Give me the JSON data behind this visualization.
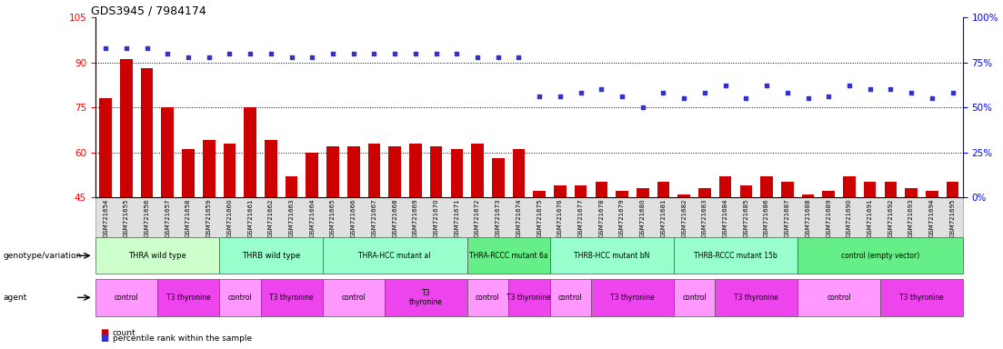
{
  "title": "GDS3945 / 7984174",
  "samples": [
    "GSM721654",
    "GSM721655",
    "GSM721656",
    "GSM721657",
    "GSM721658",
    "GSM721659",
    "GSM721660",
    "GSM721661",
    "GSM721662",
    "GSM721663",
    "GSM721664",
    "GSM721665",
    "GSM721666",
    "GSM721667",
    "GSM721668",
    "GSM721669",
    "GSM721670",
    "GSM721671",
    "GSM721672",
    "GSM721673",
    "GSM721674",
    "GSM721675",
    "GSM721676",
    "GSM721677",
    "GSM721678",
    "GSM721679",
    "GSM721680",
    "GSM721681",
    "GSM721682",
    "GSM721683",
    "GSM721684",
    "GSM721685",
    "GSM721686",
    "GSM721687",
    "GSM721688",
    "GSM721689",
    "GSM721690",
    "GSM721691",
    "GSM721692",
    "GSM721693",
    "GSM721694",
    "GSM721695"
  ],
  "bar_values": [
    78,
    91,
    88,
    75,
    61,
    64,
    63,
    75,
    64,
    52,
    60,
    62,
    62,
    63,
    62,
    63,
    62,
    61,
    63,
    58,
    61,
    47,
    49,
    49,
    50,
    47,
    48,
    50,
    46,
    48,
    52,
    49,
    52,
    50,
    46,
    47,
    52,
    50,
    50,
    48,
    47,
    50
  ],
  "dot_pct": [
    83,
    83,
    83,
    80,
    78,
    78,
    80,
    80,
    80,
    78,
    78,
    80,
    80,
    80,
    80,
    80,
    80,
    80,
    78,
    78,
    78,
    56,
    56,
    58,
    60,
    56,
    50,
    58,
    55,
    58,
    62,
    55,
    62,
    58,
    55,
    56,
    62,
    60,
    60,
    58,
    55,
    58
  ],
  "left_ylim": [
    45,
    105
  ],
  "right_ylim": [
    0,
    100
  ],
  "left_yticks": [
    45,
    60,
    75,
    90,
    105
  ],
  "right_yticks": [
    0,
    25,
    50,
    75,
    100
  ],
  "right_yticklabels": [
    "0%",
    "25%",
    "50%",
    "75%",
    "100%"
  ],
  "hlines": [
    60,
    75,
    90
  ],
  "bar_color": "#cc0000",
  "dot_color": "#3333cc",
  "genotype_groups": [
    {
      "label": "THRA wild type",
      "start": 0,
      "end": 6,
      "color": "#ccffcc"
    },
    {
      "label": "THRB wild type",
      "start": 6,
      "end": 11,
      "color": "#99ffcc"
    },
    {
      "label": "THRA-HCC mutant al",
      "start": 11,
      "end": 18,
      "color": "#99ffcc"
    },
    {
      "label": "THRA-RCCC mutant 6a",
      "start": 18,
      "end": 22,
      "color": "#66ee88"
    },
    {
      "label": "THRB-HCC mutant bN",
      "start": 22,
      "end": 28,
      "color": "#99ffcc"
    },
    {
      "label": "THRB-RCCC mutant 15b",
      "start": 28,
      "end": 34,
      "color": "#99ffcc"
    },
    {
      "label": "control (empty vector)",
      "start": 34,
      "end": 42,
      "color": "#66ee88"
    }
  ],
  "agent_groups": [
    {
      "label": "control",
      "start": 0,
      "end": 3,
      "color": "#ff99ff"
    },
    {
      "label": "T3 thyronine",
      "start": 3,
      "end": 6,
      "color": "#ee44ee"
    },
    {
      "label": "control",
      "start": 6,
      "end": 8,
      "color": "#ff99ff"
    },
    {
      "label": "T3 thyronine",
      "start": 8,
      "end": 11,
      "color": "#ee44ee"
    },
    {
      "label": "control",
      "start": 11,
      "end": 14,
      "color": "#ff99ff"
    },
    {
      "label": "T3\nthyronine",
      "start": 14,
      "end": 18,
      "color": "#ee44ee"
    },
    {
      "label": "control",
      "start": 18,
      "end": 20,
      "color": "#ff99ff"
    },
    {
      "label": "T3 thyronine",
      "start": 20,
      "end": 22,
      "color": "#ee44ee"
    },
    {
      "label": "control",
      "start": 22,
      "end": 24,
      "color": "#ff99ff"
    },
    {
      "label": "T3 thyronine",
      "start": 24,
      "end": 28,
      "color": "#ee44ee"
    },
    {
      "label": "control",
      "start": 28,
      "end": 30,
      "color": "#ff99ff"
    },
    {
      "label": "T3 thyronine",
      "start": 30,
      "end": 34,
      "color": "#ee44ee"
    },
    {
      "label": "control",
      "start": 34,
      "end": 38,
      "color": "#ff99ff"
    },
    {
      "label": "T3 thyronine",
      "start": 38,
      "end": 42,
      "color": "#ee44ee"
    }
  ]
}
